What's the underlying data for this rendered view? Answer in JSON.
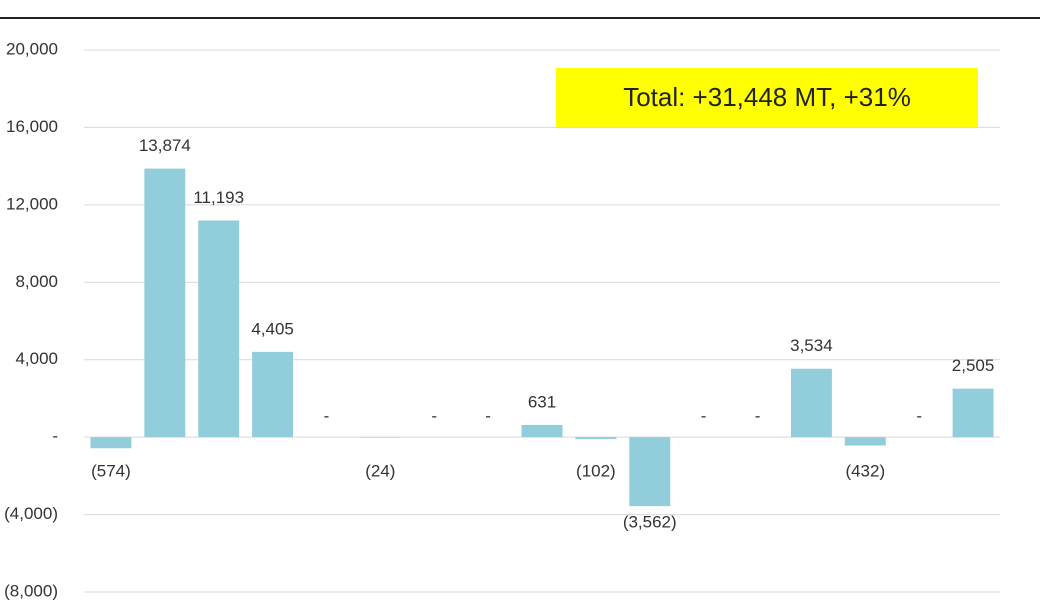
{
  "chart_data": {
    "type": "bar",
    "annotation": "Total: +31,448 MT, +31%",
    "categories": [
      null,
      null,
      null,
      null,
      null,
      null,
      null,
      null,
      null,
      null,
      null,
      null,
      null,
      null,
      null,
      null,
      null
    ],
    "values": [
      -574,
      13874,
      11193,
      4405,
      0,
      -24,
      0,
      0,
      631,
      -102,
      -3562,
      0,
      0,
      3534,
      -432,
      0,
      2505
    ],
    "value_labels": [
      "(574)",
      "13,874",
      "11,193",
      "4,405",
      "-",
      "(24)",
      "-",
      "-",
      "631",
      "(102)",
      "(3,562)",
      "-",
      "-",
      "3,534",
      "(432)",
      "-",
      "2,505"
    ],
    "color": "#92cddc",
    "ylim": [
      -8000,
      20000
    ],
    "yticks": [
      {
        "value": -8000,
        "label": "(8,000)"
      },
      {
        "value": -4000,
        "label": "(4,000)"
      },
      {
        "value": 0,
        "label": "-"
      },
      {
        "value": 4000,
        "label": "4,000"
      },
      {
        "value": 8000,
        "label": "8,000"
      },
      {
        "value": 12000,
        "label": "12,000"
      },
      {
        "value": 16000,
        "label": "16,000"
      },
      {
        "value": 20000,
        "label": "20,000"
      }
    ],
    "grid": true
  }
}
